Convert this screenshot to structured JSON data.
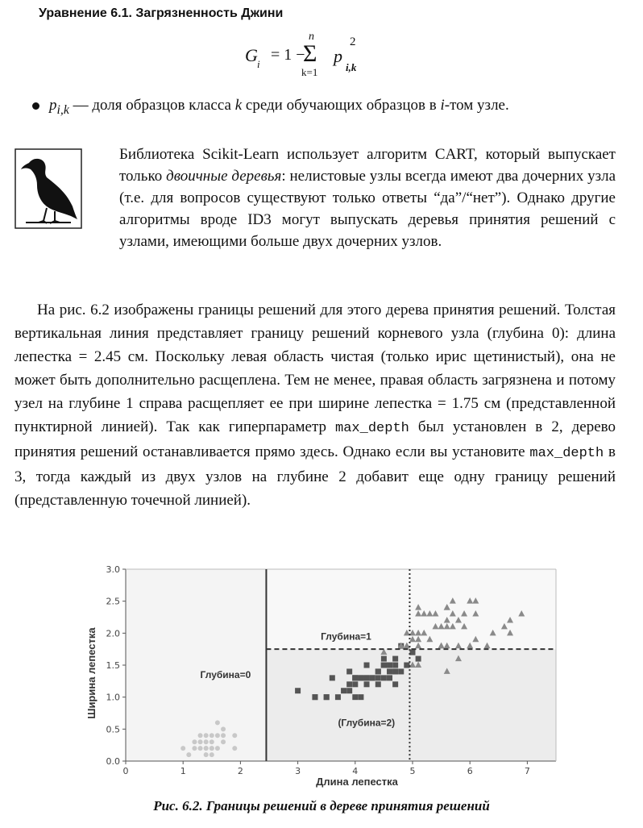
{
  "equation": {
    "title": "Уравнение 6.1. Загрязненность Джини",
    "lhs": "G",
    "lhs_sub": "i",
    "eq": "= 1 −",
    "sigma": "Σ",
    "upper": "n",
    "lower": "k=1",
    "p": "p",
    "p_sub": "i,k",
    "p_sup": "2"
  },
  "bullet": {
    "term": "p",
    "term_sub": "i,k",
    "text_a": " — доля образцов класса ",
    "k": "k",
    "text_b": " среди обучающих образцов в ",
    "i": "i",
    "text_c": "-том узле."
  },
  "note": {
    "icon": "crow-icon",
    "text_a": "Библиотека Scikit-Learn использует алгоритм CART, который выпускает только ",
    "italic": "двоичные деревья",
    "text_b": ": нелистовые узлы всегда имеют два дочерних узла (т.е. для вопросов существуют только ответы “да”/“нет”). Однако другие алгоритмы вроде ID3 могут выпускать деревья принятия решений с узлами, имеющими больше двух дочерних узлов."
  },
  "paragraph": {
    "text_a": "На рис. 6.2 изображены границы решений для этого дерева принятия решений. Толстая вертикальная линия представляет границу решений корневого узла (глубина 0): длина лепестка = 2.45 см. Поскольку левая область чистая (только ирис щетинистый), она не может быть дополнительно расщеплена. Тем не менее, правая область загрязнена и потому узел на глубине 1 справа расщепляет ее при ширине лепестка = 1.75 см (представленной пунктирной линией). Так как гиперпараметр ",
    "code1": "max_depth",
    "text_b": " был установлен в 2, дерево принятия решений останавливается прямо здесь. Однако если вы установите ",
    "code2": "max_depth",
    "text_c": " в 3, тогда каждый из двух узлов на глубине 2 добавит еще одну границу решений (представленную точечной линией)."
  },
  "caption": "Рис. 6.2. Границы решений в дереве принятия решений",
  "chart_data": {
    "type": "scatter",
    "xlabel": "Длина лепестка",
    "ylabel": "Ширина лепестка",
    "xlim": [
      0,
      7.5
    ],
    "ylim": [
      0,
      3.0
    ],
    "xticks": [
      "0",
      "1",
      "2",
      "3",
      "4",
      "5",
      "6",
      "7"
    ],
    "yticks": [
      "0.0",
      "0.5",
      "1.0",
      "1.5",
      "2.0",
      "2.5",
      "3.0"
    ],
    "boundaries": [
      {
        "kind": "solid",
        "orientation": "vertical",
        "x": 2.45
      },
      {
        "kind": "dashed",
        "orientation": "horizontal",
        "y": 1.75,
        "x_from": 2.45
      },
      {
        "kind": "dotted",
        "orientation": "vertical",
        "x": 4.95,
        "y_from": 1.75
      },
      {
        "kind": "dotted",
        "orientation": "vertical",
        "x": 4.95,
        "y_to": 1.75
      }
    ],
    "annotations": [
      {
        "text": "Глубина=0",
        "x": 1.3,
        "y": 1.3
      },
      {
        "text": "Глубина=1",
        "x": 3.4,
        "y": 1.9
      },
      {
        "text": "(Глубина=2)",
        "x": 3.7,
        "y": 0.55
      }
    ],
    "colors": {
      "setosa": "#c8c8c8",
      "versicolor": "#555555",
      "virginica": "#8a8a8a",
      "region_left": "#f4f4f4",
      "region_mid": "#ececec",
      "region_top": "#f8f8f8"
    },
    "series": [
      {
        "marker": "circle",
        "points": [
          [
            1.4,
            0.2
          ],
          [
            1.3,
            0.2
          ],
          [
            1.5,
            0.2
          ],
          [
            1.4,
            0.2
          ],
          [
            1.7,
            0.4
          ],
          [
            1.4,
            0.3
          ],
          [
            1.5,
            0.1
          ],
          [
            1.5,
            0.2
          ],
          [
            1.6,
            0.2
          ],
          [
            1.4,
            0.1
          ],
          [
            1.1,
            0.1
          ],
          [
            1.2,
            0.2
          ],
          [
            1.5,
            0.4
          ],
          [
            1.3,
            0.4
          ],
          [
            1.7,
            0.3
          ],
          [
            1.9,
            0.2
          ],
          [
            1.6,
            0.4
          ],
          [
            1.0,
            0.2
          ],
          [
            1.7,
            0.5
          ],
          [
            1.9,
            0.4
          ],
          [
            1.6,
            0.6
          ],
          [
            1.3,
            0.3
          ],
          [
            1.2,
            0.3
          ],
          [
            1.5,
            0.3
          ],
          [
            1.4,
            0.4
          ]
        ]
      },
      {
        "marker": "square",
        "points": [
          [
            4.7,
            1.4
          ],
          [
            4.5,
            1.5
          ],
          [
            4.9,
            1.5
          ],
          [
            4.0,
            1.3
          ],
          [
            4.6,
            1.5
          ],
          [
            4.5,
            1.3
          ],
          [
            4.7,
            1.6
          ],
          [
            3.3,
            1.0
          ],
          [
            4.6,
            1.3
          ],
          [
            3.9,
            1.4
          ],
          [
            3.5,
            1.0
          ],
          [
            4.2,
            1.5
          ],
          [
            4.0,
            1.0
          ],
          [
            4.7,
            1.4
          ],
          [
            3.6,
            1.3
          ],
          [
            4.4,
            1.4
          ],
          [
            4.5,
            1.5
          ],
          [
            4.1,
            1.0
          ],
          [
            4.5,
            1.5
          ],
          [
            3.9,
            1.1
          ],
          [
            4.8,
            1.8
          ],
          [
            4.0,
            1.3
          ],
          [
            4.9,
            1.5
          ],
          [
            4.7,
            1.2
          ],
          [
            4.3,
            1.3
          ],
          [
            4.4,
            1.4
          ],
          [
            4.8,
            1.4
          ],
          [
            5.0,
            1.7
          ],
          [
            4.5,
            1.5
          ],
          [
            3.5,
            1.0
          ],
          [
            3.8,
            1.1
          ],
          [
            3.7,
            1.0
          ],
          [
            3.9,
            1.2
          ],
          [
            5.1,
            1.6
          ],
          [
            4.5,
            1.5
          ],
          [
            4.5,
            1.6
          ],
          [
            4.7,
            1.5
          ],
          [
            4.4,
            1.3
          ],
          [
            4.1,
            1.3
          ],
          [
            4.0,
            1.3
          ],
          [
            4.4,
            1.2
          ],
          [
            4.6,
            1.4
          ],
          [
            4.0,
            1.2
          ],
          [
            3.3,
            1.0
          ],
          [
            4.2,
            1.3
          ],
          [
            4.2,
            1.2
          ],
          [
            4.2,
            1.3
          ],
          [
            4.3,
            1.3
          ],
          [
            3.0,
            1.1
          ],
          [
            4.1,
            1.3
          ]
        ]
      },
      {
        "marker": "triangle",
        "points": [
          [
            6.0,
            2.5
          ],
          [
            5.1,
            1.9
          ],
          [
            5.9,
            2.1
          ],
          [
            5.6,
            1.8
          ],
          [
            5.8,
            2.2
          ],
          [
            6.6,
            2.1
          ],
          [
            4.5,
            1.7
          ],
          [
            6.3,
            1.8
          ],
          [
            5.8,
            1.8
          ],
          [
            6.1,
            2.5
          ],
          [
            5.1,
            2.0
          ],
          [
            5.3,
            1.9
          ],
          [
            5.5,
            2.1
          ],
          [
            5.0,
            2.0
          ],
          [
            5.1,
            2.4
          ],
          [
            5.3,
            2.3
          ],
          [
            5.5,
            1.8
          ],
          [
            6.7,
            2.2
          ],
          [
            6.9,
            2.3
          ],
          [
            5.0,
            1.5
          ],
          [
            5.7,
            2.3
          ],
          [
            4.9,
            2.0
          ],
          [
            6.7,
            2.0
          ],
          [
            4.9,
            1.8
          ],
          [
            5.7,
            2.1
          ],
          [
            6.0,
            1.8
          ],
          [
            4.8,
            1.8
          ],
          [
            4.9,
            1.8
          ],
          [
            5.6,
            2.1
          ],
          [
            5.8,
            1.6
          ],
          [
            6.1,
            1.9
          ],
          [
            6.4,
            2.0
          ],
          [
            5.6,
            2.2
          ],
          [
            5.1,
            1.5
          ],
          [
            5.6,
            1.4
          ],
          [
            6.1,
            2.3
          ],
          [
            5.6,
            2.4
          ],
          [
            5.5,
            1.8
          ],
          [
            4.8,
            1.8
          ],
          [
            5.4,
            2.1
          ],
          [
            5.6,
            2.4
          ],
          [
            5.1,
            2.3
          ],
          [
            5.9,
            2.3
          ],
          [
            5.7,
            2.5
          ],
          [
            5.2,
            2.3
          ],
          [
            5.0,
            1.9
          ],
          [
            5.2,
            2.0
          ],
          [
            5.4,
            2.3
          ],
          [
            5.1,
            1.8
          ]
        ]
      }
    ]
  }
}
